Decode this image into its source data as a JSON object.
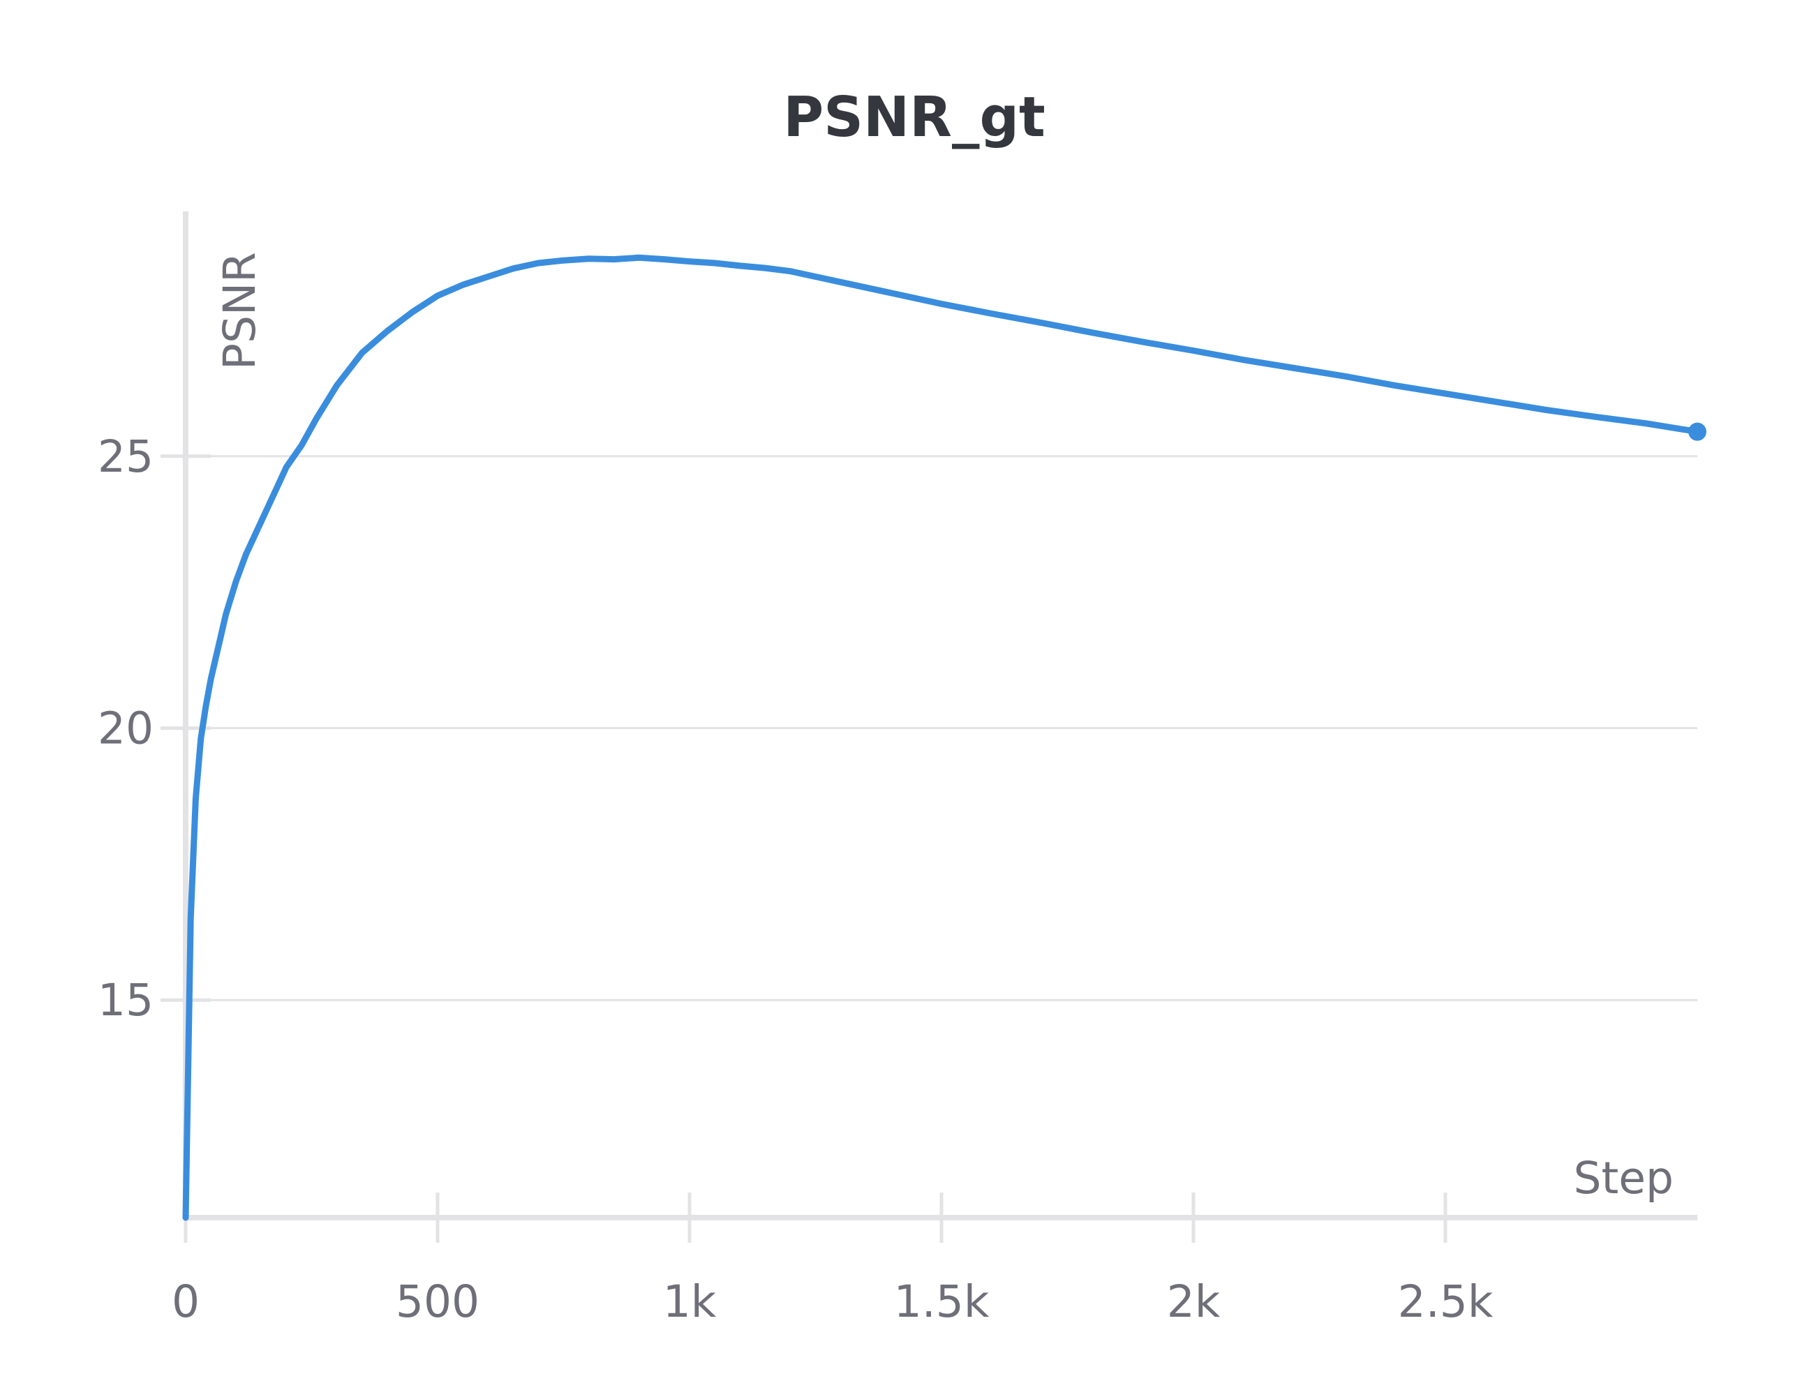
{
  "chart_data": {
    "type": "line",
    "title": "PSNR_gt",
    "xlabel": "Step",
    "ylabel": "PSNR",
    "xlim": [
      0,
      3000
    ],
    "ylim": [
      11.0,
      29.5
    ],
    "x_ticks": [
      0,
      500,
      1000,
      1500,
      2000,
      2500
    ],
    "x_tick_labels": [
      "0",
      "500",
      "1k",
      "1.5k",
      "2k",
      "2.5k"
    ],
    "y_ticks": [
      15,
      20,
      25
    ],
    "y_tick_labels": [
      "15",
      "20",
      "25"
    ],
    "grid": true,
    "legend": "none",
    "color": "#3a8ddd",
    "series": [
      {
        "x": [
          0,
          10,
          20,
          30,
          40,
          50,
          60,
          80,
          100,
          120,
          150,
          180,
          200,
          230,
          260,
          300,
          350,
          400,
          450,
          500,
          550,
          600,
          650,
          700,
          750,
          800,
          850,
          900,
          950,
          1000,
          1050,
          1100,
          1150,
          1200,
          1250,
          1300,
          1400,
          1500,
          1600,
          1700,
          1800,
          1900,
          2000,
          2100,
          2200,
          2300,
          2400,
          2500,
          2600,
          2700,
          2800,
          2900,
          3000
        ],
        "y": [
          11.0,
          16.5,
          18.7,
          19.8,
          20.4,
          20.9,
          21.3,
          22.1,
          22.7,
          23.2,
          23.8,
          24.4,
          24.8,
          25.2,
          25.7,
          26.3,
          26.9,
          27.3,
          27.65,
          27.95,
          28.15,
          28.3,
          28.45,
          28.55,
          28.6,
          28.63,
          28.62,
          28.65,
          28.62,
          28.58,
          28.55,
          28.5,
          28.46,
          28.4,
          28.3,
          28.2,
          28.0,
          27.8,
          27.62,
          27.45,
          27.27,
          27.1,
          26.94,
          26.77,
          26.62,
          26.47,
          26.3,
          26.15,
          26.0,
          25.85,
          25.72,
          25.6,
          25.45
        ]
      }
    ]
  }
}
